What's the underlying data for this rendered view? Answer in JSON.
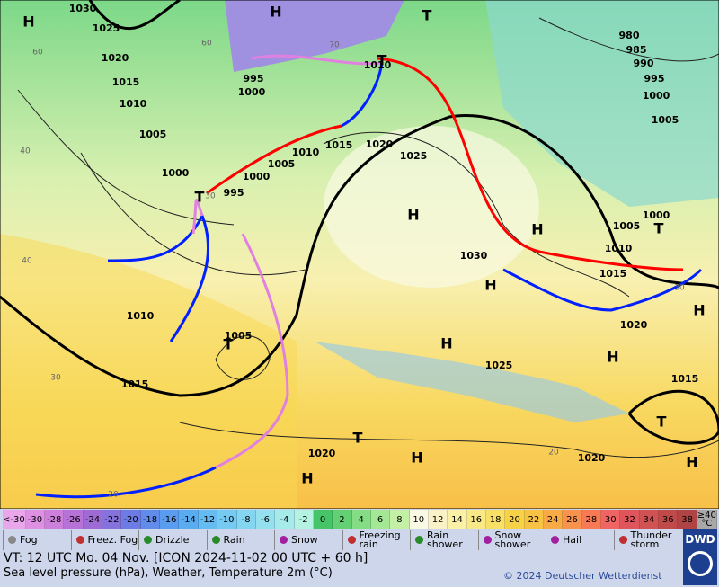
{
  "map": {
    "isobar_labels": [
      "1030",
      "1025",
      "1020",
      "1015",
      "1010",
      "1005",
      "1000",
      "995",
      "1000",
      "1005",
      "1010",
      "1015",
      "1020",
      "1025",
      "1030",
      "995",
      "1000",
      "1010",
      "980",
      "985",
      "990",
      "995",
      "1000",
      "1005",
      "1000",
      "1005",
      "1010",
      "1015",
      "1020",
      "1010",
      "1005",
      "1015",
      "1025",
      "1015",
      "1020",
      "1020"
    ],
    "temperature_labels": [
      "60",
      "40",
      "40",
      "30",
      "20",
      "20",
      "30",
      "30",
      "60",
      "70"
    ],
    "highs": [
      "H",
      "H",
      "H",
      "H",
      "H",
      "H",
      "H",
      "H",
      "H",
      "H",
      "H"
    ],
    "lows": [
      "T",
      "T",
      "T",
      "T",
      "T",
      "T",
      "T"
    ]
  },
  "legend": {
    "scale": [
      {
        "label": "<-30",
        "color": "#eaa6ea"
      },
      {
        "label": -30,
        "color": "#de90e2"
      },
      {
        "label": -28,
        "color": "#cc80dc"
      },
      {
        "label": -26,
        "color": "#b672d6"
      },
      {
        "label": -24,
        "color": "#9e6ad4"
      },
      {
        "label": -22,
        "color": "#8672dc"
      },
      {
        "label": -20,
        "color": "#6c7ce4"
      },
      {
        "label": -18,
        "color": "#628cea"
      },
      {
        "label": -16,
        "color": "#5a9cf0"
      },
      {
        "label": -14,
        "color": "#5aacf0"
      },
      {
        "label": -12,
        "color": "#64bcf0"
      },
      {
        "label": -10,
        "color": "#74caf0"
      },
      {
        "label": -8,
        "color": "#84d6f0"
      },
      {
        "label": -6,
        "color": "#94e0ee"
      },
      {
        "label": -4,
        "color": "#a6eaea"
      },
      {
        "label": -2,
        "color": "#b6f2e2"
      },
      {
        "label": 0,
        "color": "#46c468"
      },
      {
        "label": 2,
        "color": "#64d074"
      },
      {
        "label": 4,
        "color": "#84dc84"
      },
      {
        "label": 6,
        "color": "#a4e896"
      },
      {
        "label": 8,
        "color": "#c4f0a6"
      },
      {
        "label": 10,
        "color": "#fafae4"
      },
      {
        "label": 12,
        "color": "#faf2c6"
      },
      {
        "label": 14,
        "color": "#faf0a6"
      },
      {
        "label": 16,
        "color": "#f8e886"
      },
      {
        "label": 18,
        "color": "#f8e066"
      },
      {
        "label": 20,
        "color": "#f8d246"
      },
      {
        "label": 22,
        "color": "#f8c244"
      },
      {
        "label": 24,
        "color": "#f8aa44"
      },
      {
        "label": 26,
        "color": "#f8924c"
      },
      {
        "label": 28,
        "color": "#f87a54"
      },
      {
        "label": 30,
        "color": "#f06464"
      },
      {
        "label": 32,
        "color": "#e0545c"
      },
      {
        "label": 34,
        "color": "#d05252"
      },
      {
        "label": 36,
        "color": "#c04a4a"
      },
      {
        "label": 38,
        "color": "#b04444"
      },
      {
        "label": "≥40 °C",
        "color": "#a8a8a8"
      }
    ],
    "weather": [
      "Fog",
      "Freez. Fog",
      "Drizzle",
      "Rain",
      "Snow",
      "Freezing rain",
      "Rain shower",
      "Snow shower",
      "Hail",
      "Thunder storm"
    ]
  },
  "footer": {
    "valid_time": "VT: 12 UTC Mo.  04 Nov. [ICON 2024-11-02  00 UTC + 60 h]",
    "description": "Sea level pressure (hPa), Weather, Temperature 2m (°C)",
    "copyright": "© 2024 Deutscher Wetterdienst",
    "logo": "DWD"
  }
}
